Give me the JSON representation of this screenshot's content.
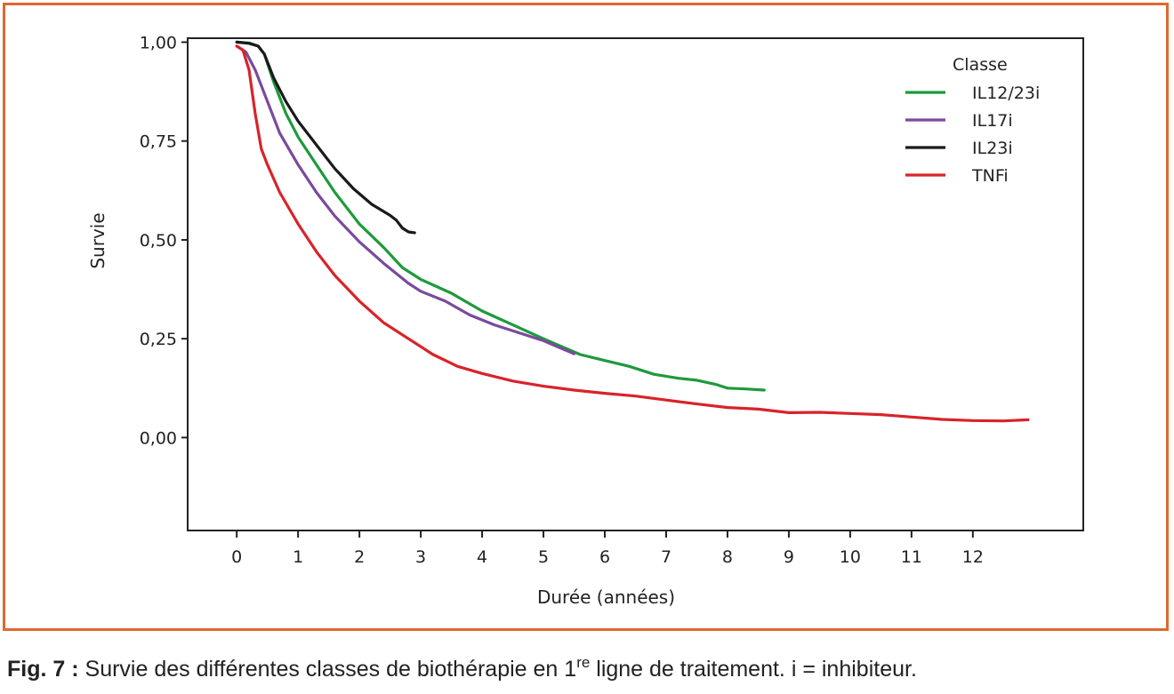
{
  "chart_data": {
    "type": "line",
    "xlabel": "Durée (années)",
    "ylabel": "Survie",
    "xlim": [
      -0.8,
      13.8
    ],
    "ylim": [
      -0.235,
      1.01
    ],
    "x_ticks": [
      0,
      1,
      2,
      3,
      4,
      5,
      6,
      7,
      8,
      9,
      10,
      11,
      12
    ],
    "y_ticks": [
      {
        "value": 1.0,
        "label": "1,00"
      },
      {
        "value": 0.75,
        "label": "0,75"
      },
      {
        "value": 0.5,
        "label": "0,50"
      },
      {
        "value": 0.25,
        "label": "0,25"
      },
      {
        "value": 0.0,
        "label": "0,00"
      }
    ],
    "legend": {
      "title": "Classe",
      "position": "top-right"
    },
    "series": [
      {
        "name": "IL12/23i",
        "color": "#1e9a3c",
        "points": [
          [
            0,
            1.0
          ],
          [
            0.2,
            0.998
          ],
          [
            0.35,
            0.99
          ],
          [
            0.45,
            0.97
          ],
          [
            0.6,
            0.9
          ],
          [
            0.8,
            0.82
          ],
          [
            1.0,
            0.76
          ],
          [
            1.3,
            0.69
          ],
          [
            1.6,
            0.62
          ],
          [
            2.0,
            0.54
          ],
          [
            2.4,
            0.48
          ],
          [
            2.7,
            0.43
          ],
          [
            3.0,
            0.4
          ],
          [
            3.5,
            0.365
          ],
          [
            4.0,
            0.32
          ],
          [
            4.5,
            0.285
          ],
          [
            5.0,
            0.25
          ],
          [
            5.3,
            0.23
          ],
          [
            5.6,
            0.21
          ],
          [
            6.0,
            0.195
          ],
          [
            6.4,
            0.18
          ],
          [
            6.8,
            0.16
          ],
          [
            7.2,
            0.15
          ],
          [
            7.5,
            0.145
          ],
          [
            7.8,
            0.135
          ],
          [
            8.0,
            0.125
          ],
          [
            8.3,
            0.123
          ],
          [
            8.6,
            0.12
          ]
        ]
      },
      {
        "name": "IL17i",
        "color": "#7a4a9c",
        "points": [
          [
            0,
            0.99
          ],
          [
            0.15,
            0.975
          ],
          [
            0.3,
            0.93
          ],
          [
            0.5,
            0.85
          ],
          [
            0.7,
            0.77
          ],
          [
            1.0,
            0.69
          ],
          [
            1.3,
            0.62
          ],
          [
            1.6,
            0.56
          ],
          [
            2.0,
            0.495
          ],
          [
            2.4,
            0.44
          ],
          [
            2.8,
            0.39
          ],
          [
            3.0,
            0.37
          ],
          [
            3.4,
            0.345
          ],
          [
            3.8,
            0.31
          ],
          [
            4.2,
            0.285
          ],
          [
            4.6,
            0.265
          ],
          [
            5.0,
            0.245
          ],
          [
            5.3,
            0.225
          ],
          [
            5.5,
            0.212
          ]
        ]
      },
      {
        "name": "IL23i",
        "color": "#1a1a1a",
        "points": [
          [
            0,
            1.0
          ],
          [
            0.2,
            0.997
          ],
          [
            0.35,
            0.99
          ],
          [
            0.45,
            0.97
          ],
          [
            0.6,
            0.91
          ],
          [
            0.8,
            0.85
          ],
          [
            1.0,
            0.8
          ],
          [
            1.3,
            0.74
          ],
          [
            1.6,
            0.68
          ],
          [
            1.9,
            0.63
          ],
          [
            2.2,
            0.59
          ],
          [
            2.5,
            0.562
          ],
          [
            2.6,
            0.55
          ],
          [
            2.7,
            0.53
          ],
          [
            2.8,
            0.52
          ],
          [
            2.9,
            0.518
          ]
        ]
      },
      {
        "name": "TNFi",
        "color": "#d8232a",
        "points": [
          [
            0,
            0.99
          ],
          [
            0.1,
            0.98
          ],
          [
            0.2,
            0.93
          ],
          [
            0.3,
            0.82
          ],
          [
            0.4,
            0.73
          ],
          [
            0.5,
            0.69
          ],
          [
            0.7,
            0.62
          ],
          [
            1.0,
            0.54
          ],
          [
            1.3,
            0.47
          ],
          [
            1.6,
            0.41
          ],
          [
            2.0,
            0.345
          ],
          [
            2.4,
            0.29
          ],
          [
            2.8,
            0.25
          ],
          [
            3.2,
            0.21
          ],
          [
            3.6,
            0.18
          ],
          [
            4.0,
            0.162
          ],
          [
            4.5,
            0.143
          ],
          [
            5.0,
            0.13
          ],
          [
            5.5,
            0.12
          ],
          [
            6.0,
            0.112
          ],
          [
            6.5,
            0.105
          ],
          [
            7.0,
            0.095
          ],
          [
            7.5,
            0.085
          ],
          [
            8.0,
            0.076
          ],
          [
            8.5,
            0.072
          ],
          [
            9.0,
            0.063
          ],
          [
            9.5,
            0.064
          ],
          [
            10.0,
            0.061
          ],
          [
            10.5,
            0.058
          ],
          [
            11.0,
            0.052
          ],
          [
            11.5,
            0.046
          ],
          [
            12.0,
            0.043
          ],
          [
            12.5,
            0.042
          ],
          [
            12.9,
            0.045
          ]
        ]
      }
    ]
  },
  "caption": {
    "label": "Fig. 7 :",
    "text_before": "Survie des différentes classes de biothérapie en 1",
    "superscript": "re",
    "text_after": " ligne de traitement. i = inhibiteur."
  }
}
